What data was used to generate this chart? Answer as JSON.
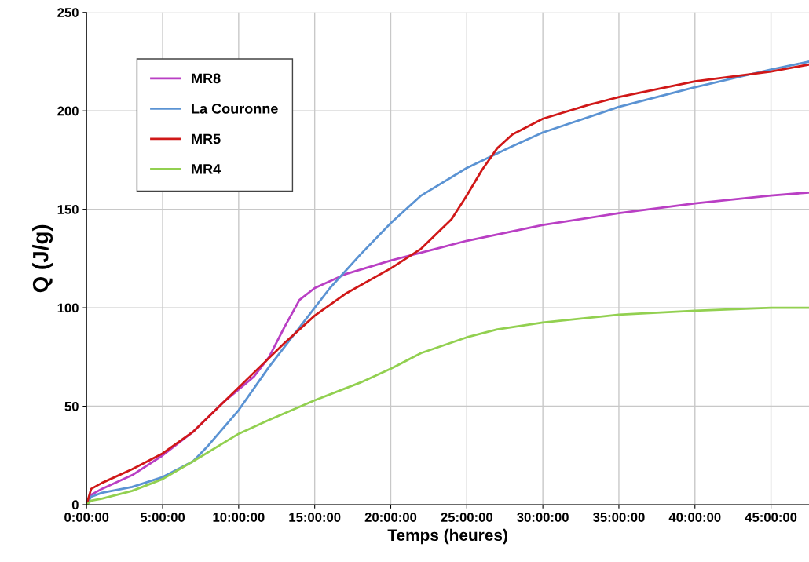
{
  "chart_data": {
    "type": "line",
    "xlabel": "Temps (heures)",
    "ylabel": "Q (J/g)",
    "xlim": [
      0,
      47.5
    ],
    "ylim": [
      0,
      250
    ],
    "xticks": [
      {
        "value": 0,
        "label": "0:00:00"
      },
      {
        "value": 5,
        "label": "5:00:00"
      },
      {
        "value": 10,
        "label": "10:00:00"
      },
      {
        "value": 15,
        "label": "15:00:00"
      },
      {
        "value": 20,
        "label": "20:00:00"
      },
      {
        "value": 25,
        "label": "25:00:00"
      },
      {
        "value": 30,
        "label": "30:00:00"
      },
      {
        "value": 35,
        "label": "35:00:00"
      },
      {
        "value": 40,
        "label": "40:00:00"
      },
      {
        "value": 45,
        "label": "45:00:00"
      }
    ],
    "yticks": [
      0,
      50,
      100,
      150,
      200,
      250
    ],
    "grid": true,
    "legend": "top left",
    "marker": "none",
    "line_style": "solid",
    "series": [
      {
        "name": "MR8",
        "color": "#b93fc4",
        "x": [
          0,
          0.3,
          1,
          3,
          5,
          7,
          9,
          11,
          12,
          13,
          14,
          15,
          17,
          20,
          23,
          25,
          30,
          35,
          40,
          45,
          47.5
        ],
        "values": [
          0,
          5,
          8,
          15,
          25,
          37,
          52,
          65,
          75,
          90,
          104,
          110,
          117,
          124,
          130,
          134,
          142,
          148,
          153,
          157,
          158.5
        ]
      },
      {
        "name": "La Couronne",
        "color": "#5b93d3",
        "x": [
          0,
          0.3,
          1,
          3,
          5,
          7,
          8,
          10,
          12,
          14,
          16,
          18,
          20,
          22,
          25,
          28,
          30,
          35,
          40,
          45,
          47.5
        ],
        "values": [
          0,
          4,
          6,
          9,
          14,
          22,
          30,
          48,
          70,
          90,
          110,
          127,
          143,
          157,
          171,
          182,
          189,
          202,
          212,
          221,
          225
        ]
      },
      {
        "name": "MR5",
        "color": "#d01818",
        "x": [
          0,
          0.3,
          1,
          3,
          5,
          7,
          9,
          11,
          13,
          15,
          17,
          20,
          22,
          24,
          25,
          26,
          27,
          28,
          30,
          33,
          35,
          40,
          45,
          47.5
        ],
        "values": [
          0,
          8,
          11,
          18,
          26,
          37,
          52,
          67,
          82,
          96,
          107,
          120,
          130,
          145,
          157,
          170,
          181,
          188,
          196,
          203,
          207,
          215,
          220,
          223.5
        ]
      },
      {
        "name": "MR4",
        "color": "#92d050",
        "x": [
          0,
          0.3,
          1,
          3,
          5,
          7,
          10,
          12,
          15,
          18,
          20,
          22,
          25,
          27,
          30,
          35,
          40,
          45,
          47.5
        ],
        "values": [
          0,
          2,
          3,
          7,
          13,
          22,
          36,
          43,
          53,
          62,
          69,
          77,
          85,
          89,
          92.5,
          96.5,
          98.5,
          100,
          100
        ]
      }
    ]
  }
}
